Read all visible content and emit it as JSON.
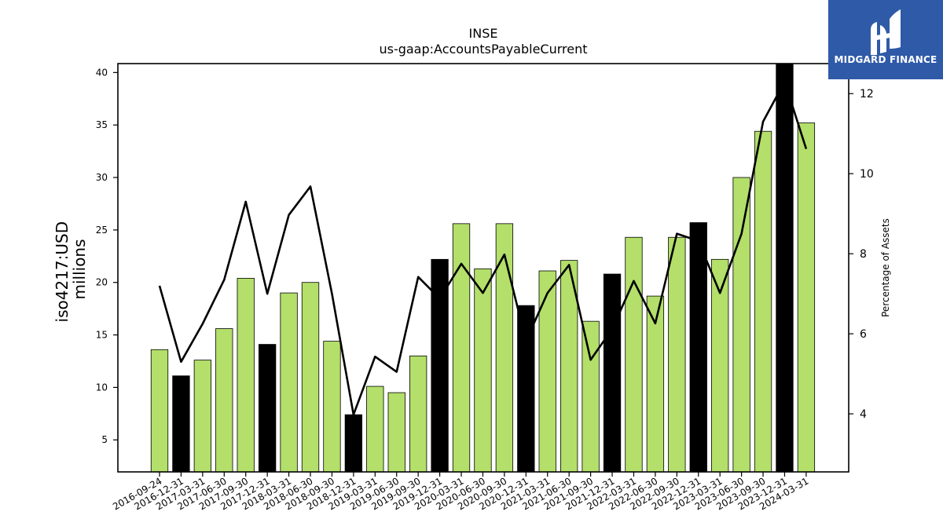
{
  "title": "INSE",
  "subtitle": "us-gaap:AccountsPayableCurrent",
  "ylabel_line1": "iso4217:USD",
  "ylabel_line2": "millions",
  "y2label": "Percentage of Assets",
  "brand": {
    "name": "MIDGARD FINANCE",
    "icon": "midgard-logo-icon",
    "color": "#2f5aa8"
  },
  "chart_data": {
    "type": "bar",
    "categories": [
      "2016-09-24",
      "2016-12-31",
      "2017-03-31",
      "2017-06-30",
      "2017-09-30",
      "2017-12-31",
      "2018-03-31",
      "2018-06-30",
      "2018-09-30",
      "2018-12-31",
      "2019-03-31",
      "2019-06-30",
      "2019-09-30",
      "2019-12-31",
      "2020-03-31",
      "2020-06-30",
      "2020-09-30",
      "2020-12-31",
      "2021-03-31",
      "2021-06-30",
      "2021-09-30",
      "2021-12-31",
      "2022-03-31",
      "2022-06-30",
      "2022-09-30",
      "2022-12-31",
      "2023-03-31",
      "2023-06-30",
      "2023-09-30",
      "2023-12-31",
      "2024-03-31"
    ],
    "series": [
      {
        "axis": "left",
        "type": "bar",
        "values": [
          13.6,
          11.1,
          12.6,
          15.6,
          20.4,
          14.1,
          19.0,
          20.0,
          14.4,
          7.4,
          10.1,
          9.5,
          13.0,
          22.2,
          25.6,
          21.3,
          25.6,
          17.8,
          21.1,
          22.1,
          16.3,
          20.8,
          24.3,
          18.7,
          24.3,
          25.7,
          22.2,
          30.0,
          34.4,
          40.8,
          35.2
        ],
        "bar_colors": [
          "#b3df6a",
          "#000000",
          "#b3df6a",
          "#b3df6a",
          "#b3df6a",
          "#000000",
          "#b3df6a",
          "#b3df6a",
          "#b3df6a",
          "#000000",
          "#b3df6a",
          "#b3df6a",
          "#b3df6a",
          "#000000",
          "#b3df6a",
          "#b3df6a",
          "#b3df6a",
          "#000000",
          "#b3df6a",
          "#b3df6a",
          "#b3df6a",
          "#000000",
          "#b3df6a",
          "#b3df6a",
          "#b3df6a",
          "#000000",
          "#b3df6a",
          "#b3df6a",
          "#b3df6a",
          "#000000",
          "#b3df6a"
        ]
      },
      {
        "axis": "right",
        "type": "line",
        "color": "#000000",
        "values": [
          7.2,
          5.3,
          6.25,
          7.35,
          9.3,
          7.0,
          8.97,
          9.68,
          7.0,
          3.98,
          5.43,
          5.05,
          7.42,
          6.88,
          7.75,
          7.02,
          7.98,
          5.82,
          7.02,
          7.72,
          5.35,
          6.12,
          7.32,
          6.26,
          8.5,
          8.32,
          7.02,
          8.5,
          11.3,
          12.3,
          10.62
        ]
      }
    ],
    "yticks": [
      5,
      10,
      15,
      20,
      25,
      30,
      35,
      40
    ],
    "ylim": [
      1.95,
      40.85
    ],
    "y2ticks": [
      4,
      6,
      8,
      10,
      12
    ],
    "y2lim": [
      2.55,
      12.75
    ],
    "grid": false,
    "xtick_rotation": -30
  }
}
